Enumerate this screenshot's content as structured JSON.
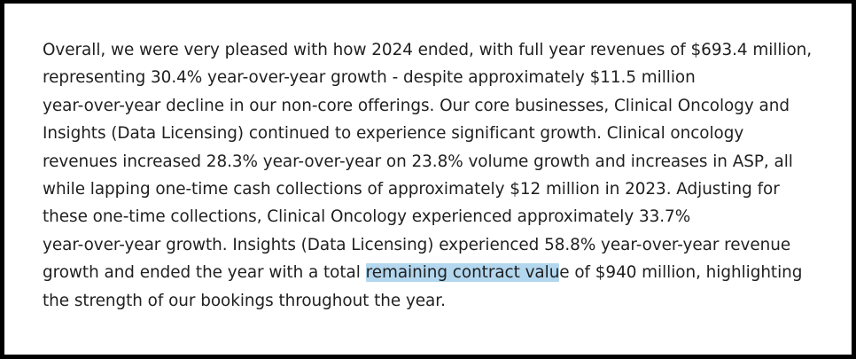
{
  "document": {
    "highlight_color": "#b3d7ef",
    "lines": [
      {
        "text": "Overall, we were very pleased with how 2024 ended, with full year revenues of $693.4 million,"
      },
      {
        "text": "representing 30.4% year-over-year growth - despite approximately $11.5 million"
      },
      {
        "text": "year-over-year decline in our non-core offerings.  Our core businesses, Clinical Oncology and"
      },
      {
        "text": "Insights (Data Licensing) continued to experience significant growth.  Clinical oncology"
      },
      {
        "text": "revenues increased 28.3% year-over-year on 23.8% volume growth and increases in ASP, all"
      },
      {
        "text": "while lapping one-time cash collections of approximately $12 million in 2023.  Adjusting for"
      },
      {
        "text": "these one-time collections, Clinical Oncology experienced approximately 33.7%"
      },
      {
        "text": "year-over-year growth.  Insights (Data Licensing) experienced 58.8% year-over-year revenue"
      },
      {
        "before": "growth and ended the year with a total ",
        "highlight": "remaining contract valu",
        "after": "e of $940 million, highlighting"
      },
      {
        "text": "the strength of our bookings throughout the year."
      }
    ]
  }
}
